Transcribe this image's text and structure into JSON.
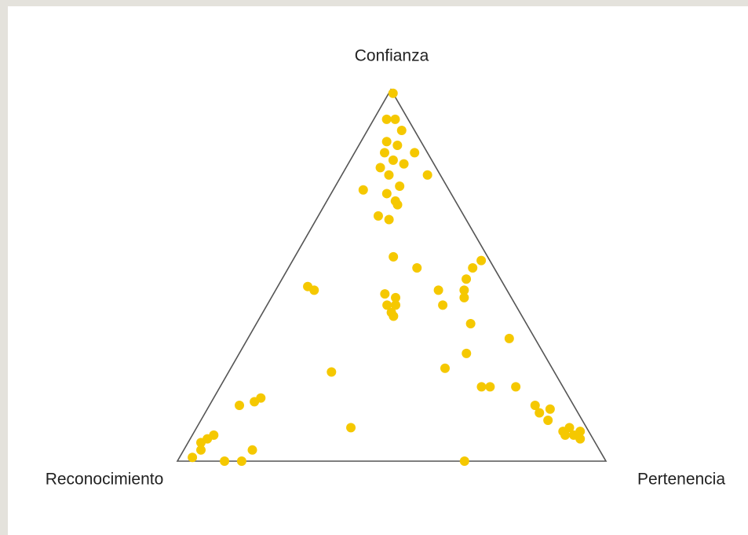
{
  "chart_data": {
    "type": "ternary",
    "axes": {
      "top": "Confianza",
      "left": "Reconocimiento",
      "right": "Pertenencia"
    },
    "color": "#f5c800",
    "confianza": [
      99,
      92,
      92,
      89,
      86,
      85,
      83,
      81,
      83,
      80,
      79,
      77,
      77,
      74,
      73,
      72,
      70,
      69,
      66,
      65,
      55,
      52,
      52,
      54,
      49,
      47,
      46,
      46,
      46,
      44,
      45,
      44,
      42,
      42,
      40,
      39,
      42,
      37,
      33,
      29,
      25,
      24,
      20,
      20,
      20,
      17,
      16,
      15,
      15,
      14,
      13,
      11,
      9,
      8,
      9,
      8,
      7,
      6,
      7,
      6,
      5,
      3,
      3,
      1,
      0,
      0,
      0,
      7
    ],
    "pertenencia": [
      1,
      3,
      5,
      8,
      6,
      9,
      7,
      10,
      14,
      13,
      8,
      11,
      20,
      15,
      7,
      13,
      16,
      17,
      14,
      17,
      23,
      30,
      43,
      44,
      43,
      7,
      9,
      38,
      44,
      45,
      26,
      29,
      28,
      30,
      30,
      31,
      41,
      50,
      61,
      53,
      50,
      24,
      61,
      63,
      69,
      11,
      10,
      7,
      76,
      80,
      78,
      81,
      36,
      86,
      87,
      90,
      87,
      91,
      5,
      4,
      3,
      4,
      16,
      3,
      11,
      15,
      67,
      89
    ],
    "reconocimiento": [
      0,
      5,
      3,
      3,
      8,
      6,
      10,
      9,
      3,
      7,
      13,
      12,
      3,
      11,
      20,
      15,
      14,
      14,
      20,
      18,
      22,
      18,
      5,
      2,
      8,
      46,
      45,
      16,
      10,
      11,
      29,
      27,
      30,
      28,
      30,
      30,
      17,
      13,
      6,
      18,
      25,
      52,
      19,
      17,
      11,
      72,
      74,
      78,
      9,
      6,
      9,
      8,
      55,
      6,
      4,
      2,
      6,
      3,
      88,
      90,
      92,
      93,
      81,
      96,
      89,
      85,
      33,
      4
    ]
  }
}
